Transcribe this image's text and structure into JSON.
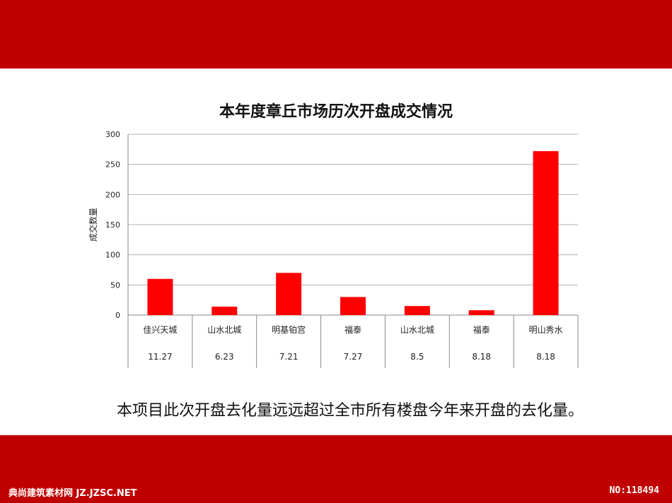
{
  "chart_data": {
    "type": "bar",
    "title": "本年度章丘市场历次开盘成交情况",
    "ylabel": "成交数量",
    "xlabel": "",
    "ylim": [
      0,
      300
    ],
    "yticks": [
      0,
      50,
      100,
      150,
      200,
      250,
      300
    ],
    "categories": [
      "佳兴天城",
      "山水北城",
      "明基铂宫",
      "福泰",
      "山水北城",
      "福泰",
      "明山秀水"
    ],
    "dates": [
      "11.27",
      "6.23",
      "7.21",
      "7.27",
      "8.5",
      "8.18",
      "8.18"
    ],
    "values": [
      60,
      14,
      70,
      30,
      15,
      8,
      272
    ],
    "bar_color": "#ff0000",
    "grid": true
  },
  "caption": "本项目此次开盘去化量远远超过全市所有楼盘今年来开盘的去化量。",
  "footer": {
    "left": "典尚建筑素材网 JZ.JZSC.NET",
    "right": "NO:118494"
  },
  "colors": {
    "band": "#c00000"
  }
}
